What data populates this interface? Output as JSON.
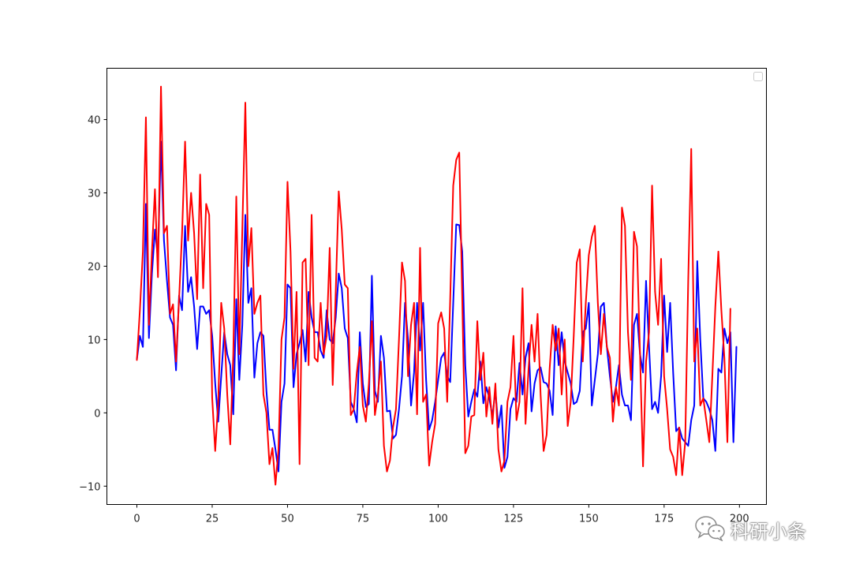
{
  "watermark": {
    "text": "科研小条",
    "icon": "wechat-bubbles-icon"
  },
  "chart_data": {
    "type": "line",
    "title": "",
    "xlabel": "",
    "ylabel": "",
    "xlim": [
      -9.95,
      208.95
    ],
    "ylim": [
      -12.5,
      47
    ],
    "xticks": [
      0,
      25,
      50,
      75,
      100,
      125,
      150,
      175,
      200
    ],
    "yticks": [
      -10,
      0,
      10,
      20,
      30,
      40
    ],
    "grid": false,
    "legend": {
      "placement": "top-right",
      "entries": []
    },
    "x_range": [
      0,
      199
    ],
    "series": [
      {
        "color": "#0000ff",
        "values": [
          7.3,
          10.5,
          9.0,
          28.5,
          10.2,
          19.0,
          25.0,
          21.0,
          37.0,
          23.5,
          18.0,
          13.0,
          12.0,
          5.8,
          16.0,
          14.0,
          25.5,
          16.5,
          18.5,
          14.5,
          8.7,
          14.5,
          14.5,
          13.5,
          14.0,
          10.5,
          4.0,
          -1.2,
          5.0,
          11.0,
          8.0,
          6.5,
          -0.2,
          15.5,
          4.5,
          12.0,
          27.0,
          15.0,
          17.0,
          4.8,
          9.5,
          11.0,
          10.5,
          3.0,
          -2.3,
          -2.3,
          -5.0,
          -8.0,
          1.5,
          4.0,
          17.5,
          17.0,
          3.5,
          8.0,
          9.5,
          11.3,
          7.0,
          16.5,
          13.0,
          11.0,
          11.0,
          8.5,
          7.5,
          14.0,
          10.0,
          9.5,
          13.0,
          19.0,
          17.0,
          11.5,
          10.2,
          1.5,
          0.5,
          -1.3,
          11.0,
          4.0,
          0.8,
          1.2,
          18.7,
          3.0,
          1.5,
          10.5,
          7.5,
          0.2,
          0.3,
          -3.5,
          -3.0,
          0.5,
          5.0,
          15.0,
          10.0,
          1.0,
          5.5,
          15.0,
          8.5,
          15.0,
          4.5,
          -2.3,
          -1.0,
          1.5,
          4.5,
          7.5,
          8.2,
          5.0,
          4.2,
          15.0,
          25.7,
          25.6,
          22.0,
          6.5,
          -0.5,
          1.5,
          3.2,
          2.2,
          7.0,
          1.3,
          3.5,
          2.0,
          -0.5,
          3.0,
          -2.0,
          1.0,
          -7.5,
          -6.0,
          0.5,
          2.0,
          1.5,
          6.8,
          2.5,
          7.5,
          9.5,
          0.2,
          4.0,
          5.8,
          6.2,
          4.2,
          4.0,
          3.0,
          -0.3,
          11.8,
          6.5,
          11.0,
          7.0,
          5.5,
          4.0,
          1.2,
          1.5,
          3.0,
          11.0,
          11.5,
          15.0,
          1.0,
          4.5,
          8.0,
          14.5,
          15.0,
          9.0,
          5.0,
          1.5,
          3.5,
          6.5,
          2.5,
          1.0,
          1.0,
          -1.0,
          12.0,
          13.5,
          8.0,
          5.5,
          18.0,
          9.0,
          0.5,
          1.5,
          0.0,
          5.0,
          16.0,
          8.3,
          15.0,
          5.5,
          -2.5,
          -2.0,
          -3.5,
          -4.0,
          -4.5,
          -1.0,
          1.0,
          20.7,
          10.0,
          2.0,
          1.5,
          0.5,
          -1.0,
          -5.2,
          6.0,
          5.5,
          11.5,
          9.5,
          11.0,
          -4.0,
          9.0
        ]
      },
      {
        "color": "#ff0000",
        "values": [
          7.2,
          14.0,
          22.0,
          40.3,
          12.0,
          22.0,
          30.5,
          18.5,
          44.5,
          24.5,
          25.5,
          13.5,
          14.8,
          7.0,
          15.5,
          24.5,
          37.0,
          23.5,
          30.0,
          24.5,
          15.5,
          32.5,
          17.0,
          28.5,
          27.0,
          2.0,
          -5.2,
          1.5,
          15.0,
          11.5,
          2.5,
          -4.3,
          8.0,
          29.5,
          8.0,
          25.0,
          42.3,
          20.0,
          25.2,
          13.5,
          15.0,
          16.0,
          2.5,
          0.0,
          -7.0,
          -4.8,
          -9.8,
          -5.0,
          10.0,
          13.0,
          31.5,
          22.0,
          6.0,
          16.5,
          -7.0,
          20.5,
          21.0,
          6.5,
          27.0,
          7.5,
          7.0,
          15.0,
          8.0,
          10.5,
          22.5,
          3.8,
          16.5,
          30.2,
          25.0,
          17.5,
          17.0,
          -0.3,
          0.5,
          5.5,
          9.0,
          1.0,
          -1.2,
          4.0,
          12.5,
          -0.3,
          2.5,
          7.0,
          -4.5,
          -8.0,
          -6.5,
          -2.0,
          0.5,
          10.0,
          20.5,
          18.0,
          5.0,
          12.0,
          15.0,
          -0.2,
          22.5,
          1.5,
          2.5,
          -7.2,
          -4.0,
          -1.5,
          12.2,
          13.7,
          11.5,
          1.5,
          15.5,
          31.0,
          34.5,
          35.5,
          15.5,
          -5.5,
          -4.5,
          -0.5,
          -0.3,
          12.5,
          4.5,
          8.2,
          -0.5,
          3.5,
          -1.5,
          4.0,
          -5.0,
          -8.0,
          -6.5,
          1.5,
          3.5,
          10.5,
          -1.0,
          1.5,
          17.0,
          -1.5,
          6.0,
          12.0,
          7.0,
          13.5,
          2.5,
          -5.2,
          -3.0,
          6.0,
          12.0,
          8.5,
          11.5,
          2.5,
          10.0,
          -1.8,
          1.5,
          10.5,
          20.5,
          22.3,
          7.0,
          15.0,
          21.5,
          24.0,
          25.5,
          15.0,
          8.0,
          13.5,
          9.0,
          7.5,
          -1.2,
          3.5,
          1.0,
          28.0,
          25.5,
          11.0,
          4.5,
          24.7,
          22.7,
          8.0,
          -7.3,
          7.0,
          11.0,
          31.0,
          16.5,
          12.0,
          21.0,
          5.0,
          0.5,
          -5.0,
          -6.0,
          -8.5,
          -2.0,
          -8.5,
          -4.0,
          18.0,
          36.0,
          7.0,
          11.5,
          1.0,
          2.0,
          -1.0,
          -4.0,
          5.0,
          14.5,
          22.0,
          14.0,
          7.5,
          -4.0,
          14.2
        ]
      }
    ]
  }
}
